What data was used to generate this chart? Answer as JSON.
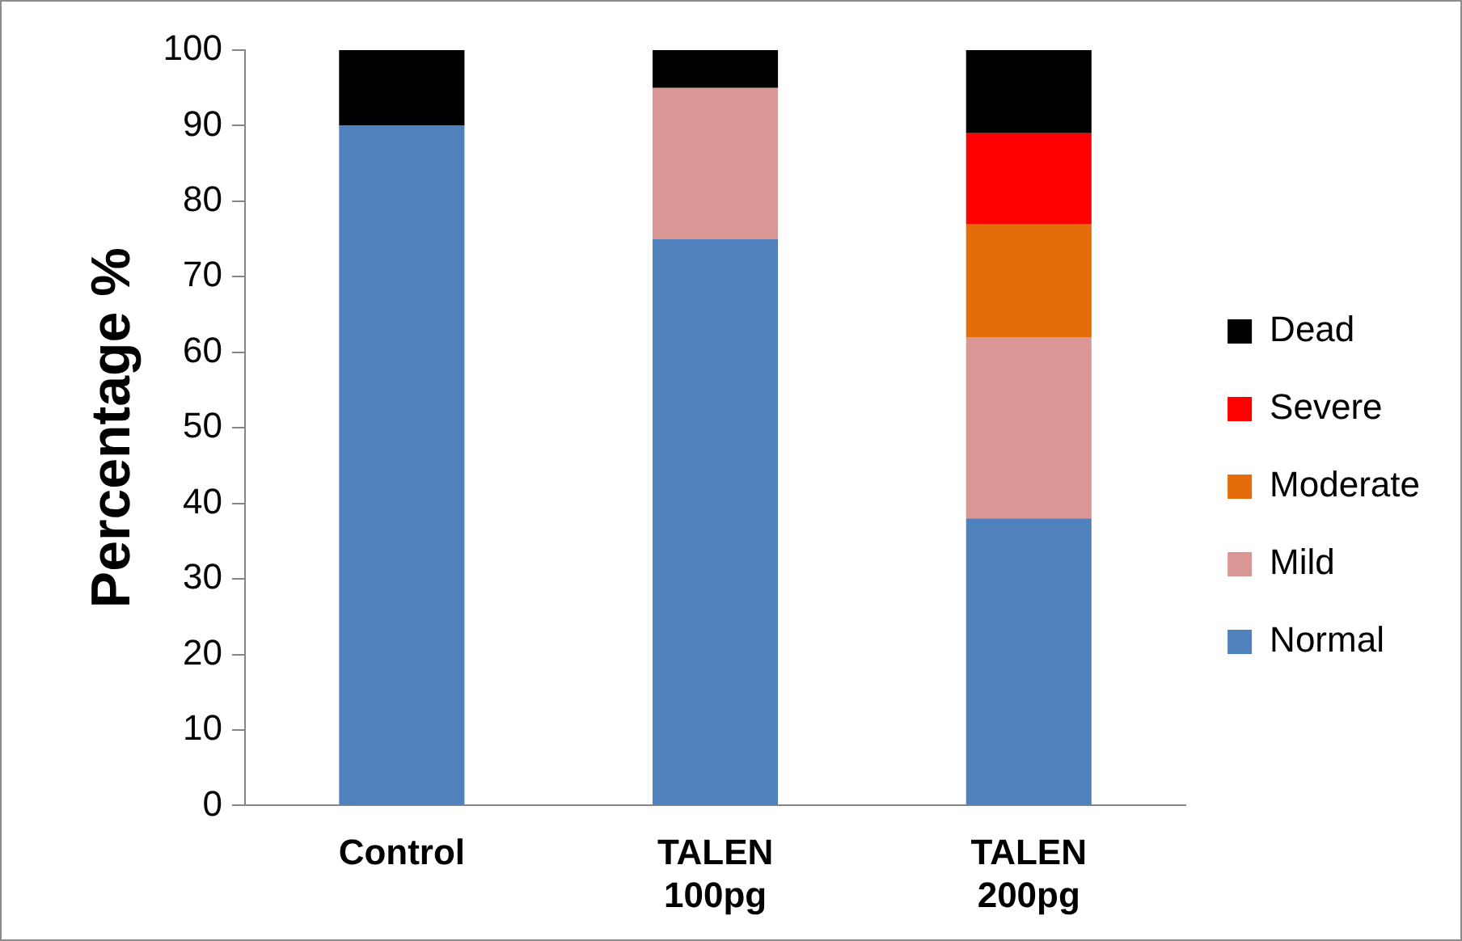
{
  "chart_data": {
    "type": "bar",
    "stacked": true,
    "ylabel": "Percentage %",
    "categories": [
      "Control",
      "TALEN 100pg",
      "TALEN 200pg"
    ],
    "series": [
      {
        "name": "Normal",
        "color": "#4f81bd",
        "values": [
          90,
          75,
          38
        ]
      },
      {
        "name": "Mild",
        "color": "#d99694",
        "values": [
          0,
          20,
          24
        ]
      },
      {
        "name": "Moderate",
        "color": "#e46c0a",
        "values": [
          0,
          0,
          15
        ]
      },
      {
        "name": "Severe",
        "color": "#ff0000",
        "values": [
          0,
          0,
          12
        ]
      },
      {
        "name": "Dead",
        "color": "#000000",
        "values": [
          10,
          5,
          11
        ]
      }
    ],
    "ylim": [
      0,
      100
    ],
    "yticks": [
      0,
      10,
      20,
      30,
      40,
      50,
      60,
      70,
      80,
      90,
      100
    ],
    "grid": false,
    "legend": "right"
  }
}
